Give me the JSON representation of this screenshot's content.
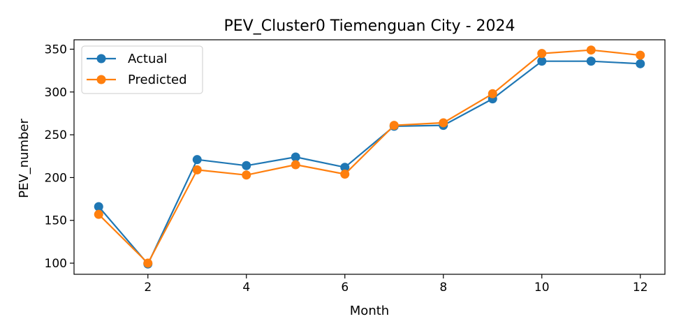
{
  "chart_data": {
    "type": "line",
    "title": "PEV_Cluster0 Tiemenguan City - 2024",
    "xlabel": "Month",
    "ylabel": "PEV_number",
    "x": [
      1,
      2,
      3,
      4,
      5,
      6,
      7,
      8,
      9,
      10,
      11,
      12
    ],
    "xlim": [
      0.5,
      12.5
    ],
    "ylim": [
      87,
      361
    ],
    "xticks": [
      2,
      4,
      6,
      8,
      10,
      12
    ],
    "yticks": [
      100,
      150,
      200,
      250,
      300,
      350
    ],
    "grid": false,
    "legend_position": "top-left",
    "series": [
      {
        "name": "Actual",
        "color": "#1f77b4",
        "values": [
          166,
          99,
          221,
          214,
          224,
          212,
          260,
          261,
          292,
          336,
          336,
          333
        ]
      },
      {
        "name": "Predicted",
        "color": "#ff7f0e",
        "values": [
          157,
          100,
          209,
          203,
          215,
          204,
          261,
          264,
          298,
          345,
          349,
          343
        ]
      }
    ]
  }
}
